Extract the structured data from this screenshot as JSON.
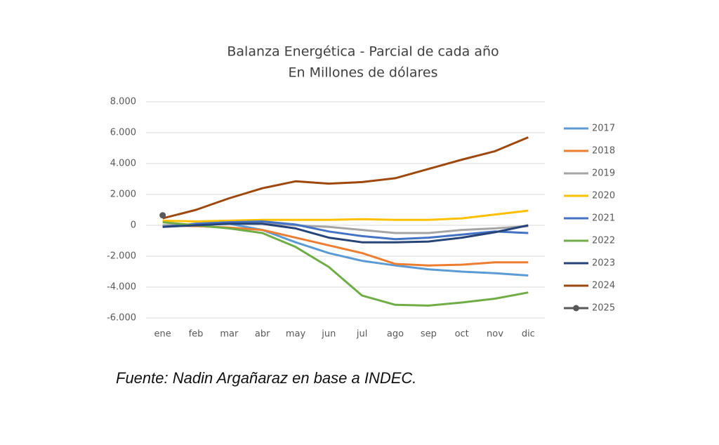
{
  "chart_data": {
    "type": "line",
    "title": "Balanza Energética - Parcial de cada año",
    "subtitle": "En Millones de dólares",
    "source": "Fuente: Nadin Argañaraz en base a INDEC.",
    "categories": [
      "ene",
      "feb",
      "mar",
      "abr",
      "may",
      "jun",
      "jul",
      "ago",
      "sep",
      "oct",
      "nov",
      "dic"
    ],
    "ylim": [
      -6000,
      8000
    ],
    "yticks": [
      {
        "value": -6000,
        "label": "-6.000"
      },
      {
        "value": -4000,
        "label": "-4.000"
      },
      {
        "value": -2000,
        "label": "-2.000"
      },
      0,
      {
        "value": 2000,
        "label": "2.000"
      },
      {
        "value": 4000,
        "label": "4.000"
      },
      {
        "value": 6000,
        "label": "6.000"
      },
      {
        "value": 8000,
        "label": "8.000"
      }
    ],
    "grid": true,
    "legend": "right",
    "series": [
      {
        "name": "2017",
        "color": "#5b9bd5",
        "values": [
          0,
          50,
          100,
          -300,
          -1100,
          -1800,
          -2300,
          -2600,
          -2850,
          -3000,
          -3100,
          -3250
        ]
      },
      {
        "name": "2018",
        "color": "#ed7d31",
        "values": [
          0,
          -50,
          -150,
          -300,
          -800,
          -1300,
          -1800,
          -2500,
          -2600,
          -2550,
          -2400,
          -2400
        ]
      },
      {
        "name": "2019",
        "color": "#a5a5a5",
        "values": [
          0,
          50,
          100,
          150,
          0,
          -100,
          -300,
          -500,
          -500,
          -300,
          -200,
          -50
        ]
      },
      {
        "name": "2020",
        "color": "#ffc000",
        "values": [
          300,
          250,
          300,
          350,
          350,
          350,
          400,
          350,
          350,
          450,
          700,
          950
        ]
      },
      {
        "name": "2021",
        "color": "#4472c4",
        "values": [
          -100,
          100,
          200,
          250,
          50,
          -400,
          -700,
          -900,
          -800,
          -600,
          -400,
          -500
        ]
      },
      {
        "name": "2022",
        "color": "#70ad47",
        "values": [
          200,
          0,
          -200,
          -500,
          -1400,
          -2700,
          -4550,
          -5150,
          -5200,
          -5000,
          -4750,
          -4350
        ]
      },
      {
        "name": "2023",
        "color": "#264478",
        "values": [
          -100,
          0,
          100,
          100,
          -200,
          -800,
          -1100,
          -1100,
          -1050,
          -800,
          -450,
          0
        ]
      },
      {
        "name": "2024",
        "color": "#9e480e",
        "values": [
          450,
          1000,
          1750,
          2400,
          2850,
          2700,
          2800,
          3050,
          3650,
          4250,
          4800,
          5700
        ]
      },
      {
        "name": "2025",
        "color": "#595959",
        "marker": true,
        "values": [
          650,
          null,
          null,
          null,
          null,
          null,
          null,
          null,
          null,
          null,
          null,
          null
        ]
      }
    ]
  }
}
